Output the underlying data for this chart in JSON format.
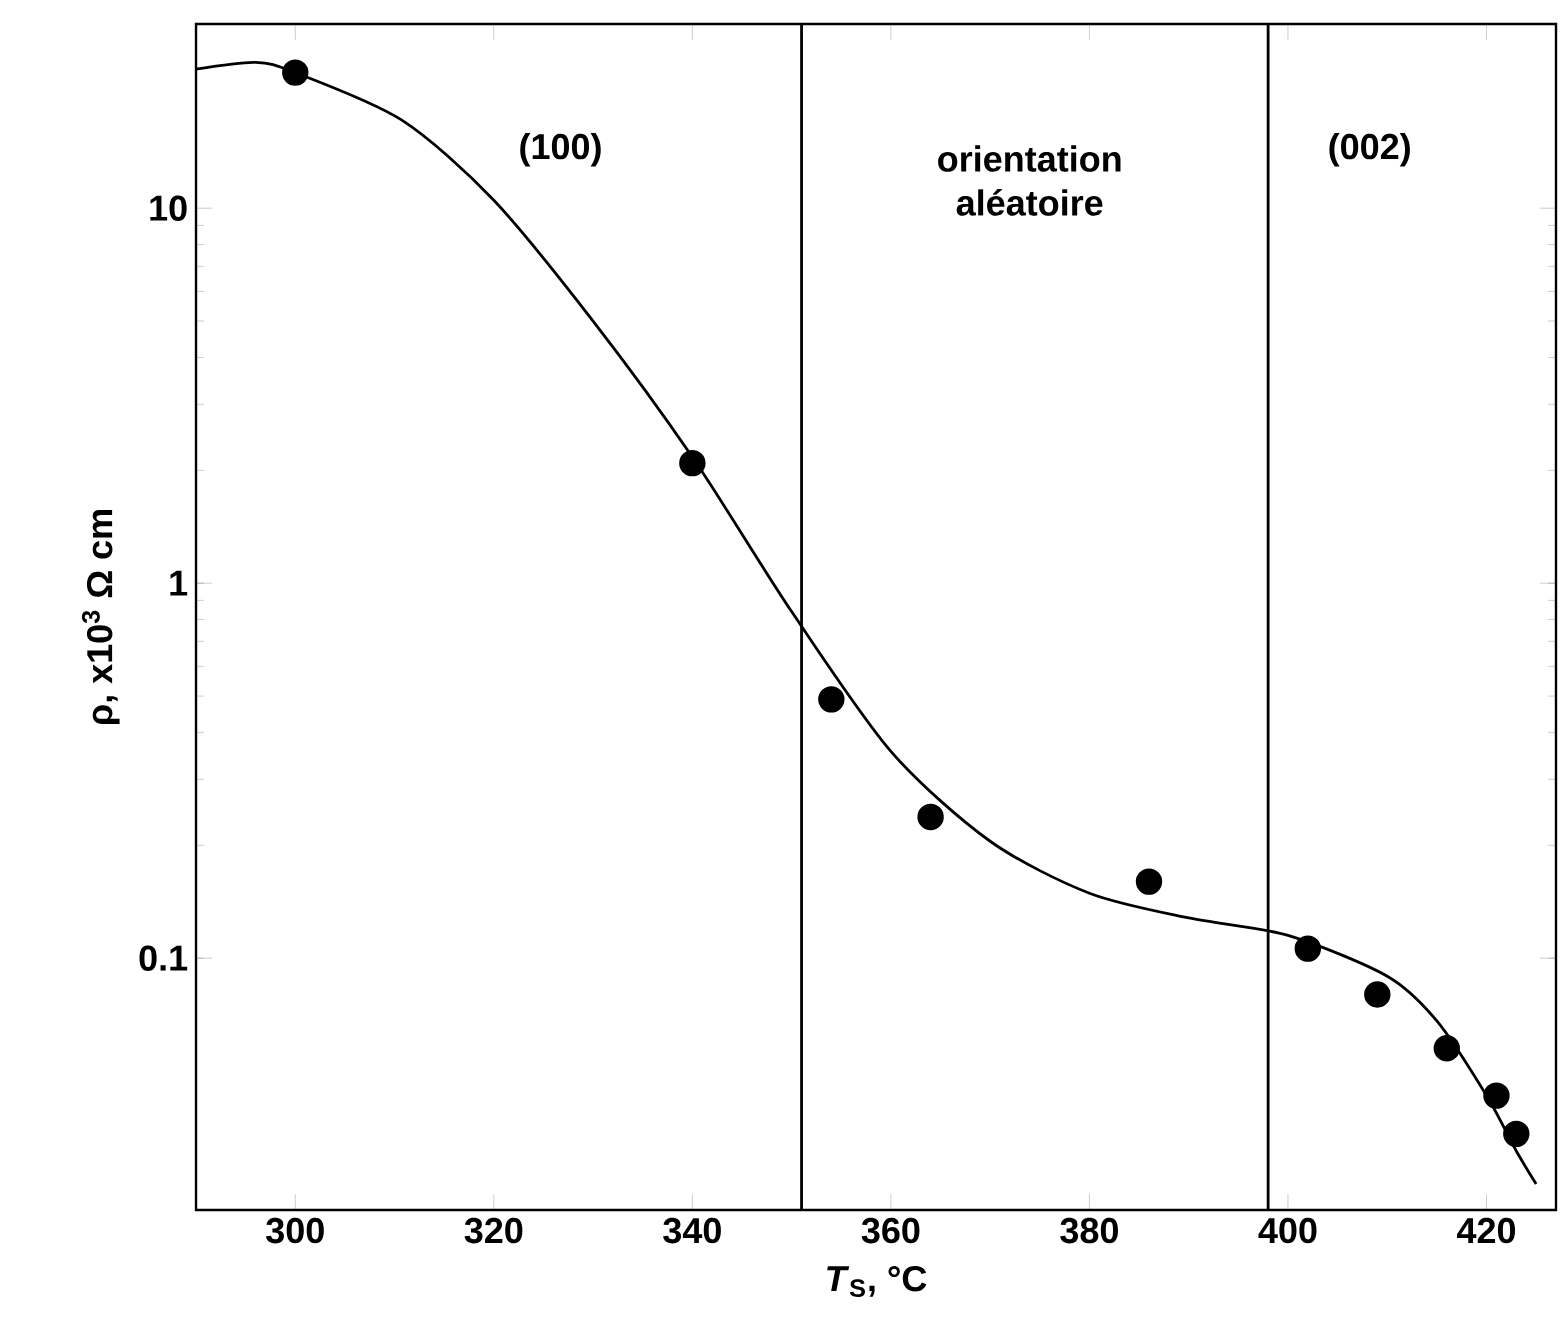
{
  "chart_data": {
    "type": "scatter",
    "xlabel": "*T*$_{S}$, °C",
    "ylabel": "ρ, x10$^{3}$ Ω cm",
    "log": "y",
    "xlim": [
      290,
      427
    ],
    "ylim": [
      0.0213,
      31
    ],
    "xticks": [
      300,
      320,
      340,
      360,
      380,
      400,
      420
    ],
    "yticks": [
      0.1,
      1,
      10
    ],
    "marker": "circle",
    "series": [
      {
        "color": "#000000",
        "x": [
          300,
          340,
          354,
          364,
          386,
          402,
          409,
          416,
          421,
          423
        ],
        "values": [
          23,
          2.09,
          0.49,
          0.238,
          0.16,
          0.106,
          0.08,
          0.0575,
          0.043,
          0.034
        ]
      },
      {
        "type": "line",
        "color": "#000000",
        "marker": "none",
        "x": [
          290,
          296,
          300,
          310.7,
          320,
          330,
          340,
          350,
          360,
          370,
          380,
          390,
          400,
          410,
          415,
          420,
          423,
          425
        ],
        "values": [
          23.5,
          24.5,
          23,
          17.2,
          10.5,
          5.0,
          2.17,
          0.84,
          0.356,
          0.205,
          0.149,
          0.128,
          0.115,
          0.0895,
          0.068,
          0.043,
          0.0306,
          0.025
        ]
      }
    ],
    "ref_lines": [
      {
        "axis": "x",
        "value": 351,
        "color": "#000000"
      },
      {
        "axis": "x",
        "value": 398,
        "color": "#000000"
      }
    ],
    "annotations": [
      "(100)",
      "orientation aléatoire",
      "(002)"
    ]
  }
}
